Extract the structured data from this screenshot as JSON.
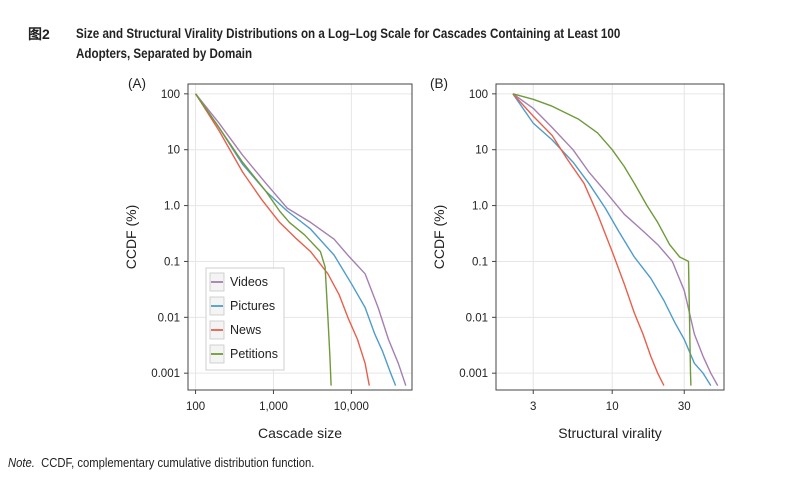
{
  "figure": {
    "label": "图2",
    "title": "Size and Structural Virality Distributions on a Log–Log Scale for Cascades Containing at Least 100 Adopters, Separated by Domain",
    "note_prefix": "Note.",
    "note_text": "CCDF, complementary cumulative distribution function."
  },
  "colors": {
    "Videos": "#a57fb0",
    "Pictures": "#4f9ccb",
    "News": "#e8604c",
    "Petitions": "#6f9a3a"
  },
  "chart_data": [
    {
      "type": "line",
      "panel_label": "(A)",
      "xlabel": "Cascade size",
      "ylabel": "CCDF (%)",
      "x_scale": "log",
      "y_scale": "log",
      "xlim": [
        80,
        60000
      ],
      "ylim": [
        0.0005,
        150
      ],
      "x_ticks": [
        {
          "value": 100,
          "label": "100"
        },
        {
          "value": 1000,
          "label": "1,000"
        },
        {
          "value": 10000,
          "label": "10,000"
        }
      ],
      "y_ticks": [
        {
          "value": 100,
          "label": "100"
        },
        {
          "value": 10,
          "label": "10"
        },
        {
          "value": 1,
          "label": "1.0"
        },
        {
          "value": 0.1,
          "label": "0.1"
        },
        {
          "value": 0.01,
          "label": "0.01"
        },
        {
          "value": 0.001,
          "label": "0.001"
        }
      ],
      "grid": true,
      "legend": {
        "position": "bottom-left",
        "entries": [
          "Videos",
          "Pictures",
          "News",
          "Petitions"
        ]
      },
      "series": [
        {
          "name": "Videos",
          "points": [
            [
              100,
              100
            ],
            [
              200,
              30
            ],
            [
              400,
              8
            ],
            [
              800,
              2.5
            ],
            [
              1500,
              0.9
            ],
            [
              3000,
              0.5
            ],
            [
              6000,
              0.25
            ],
            [
              9000,
              0.13
            ],
            [
              15000,
              0.06
            ],
            [
              22000,
              0.015
            ],
            [
              30000,
              0.004
            ],
            [
              40000,
              0.0015
            ],
            [
              50000,
              0.0006
            ]
          ]
        },
        {
          "name": "Pictures",
          "points": [
            [
              100,
              100
            ],
            [
              200,
              25
            ],
            [
              400,
              5.5
            ],
            [
              800,
              1.8
            ],
            [
              1500,
              0.8
            ],
            [
              3000,
              0.38
            ],
            [
              6000,
              0.13
            ],
            [
              10000,
              0.04
            ],
            [
              15000,
              0.015
            ],
            [
              20000,
              0.005
            ],
            [
              25000,
              0.0025
            ],
            [
              32000,
              0.001
            ],
            [
              37000,
              0.0006
            ]
          ]
        },
        {
          "name": "News",
          "points": [
            [
              100,
              100
            ],
            [
              200,
              22
            ],
            [
              400,
              4
            ],
            [
              700,
              1.3
            ],
            [
              1200,
              0.5
            ],
            [
              2000,
              0.25
            ],
            [
              3000,
              0.15
            ],
            [
              5000,
              0.06
            ],
            [
              7000,
              0.025
            ],
            [
              9000,
              0.01
            ],
            [
              12000,
              0.004
            ],
            [
              15000,
              0.0015
            ],
            [
              17000,
              0.0006
            ]
          ]
        },
        {
          "name": "Petitions",
          "points": [
            [
              100,
              100
            ],
            [
              200,
              25
            ],
            [
              400,
              6
            ],
            [
              800,
              1.8
            ],
            [
              1200,
              0.8
            ],
            [
              1600,
              0.5
            ],
            [
              2500,
              0.3
            ],
            [
              4000,
              0.15
            ],
            [
              4600,
              0.08
            ],
            [
              5000,
              0.01
            ],
            [
              5300,
              0.002
            ],
            [
              5500,
              0.0006
            ]
          ]
        }
      ]
    },
    {
      "type": "line",
      "panel_label": "(B)",
      "xlabel": "Structural virality",
      "ylabel": "CCDF (%)",
      "x_scale": "log",
      "y_scale": "log",
      "xlim": [
        1.7,
        55
      ],
      "ylim": [
        0.0005,
        150
      ],
      "x_ticks": [
        {
          "value": 3,
          "label": "3"
        },
        {
          "value": 10,
          "label": "10"
        },
        {
          "value": 30,
          "label": "30"
        }
      ],
      "y_ticks": [
        {
          "value": 100,
          "label": "100"
        },
        {
          "value": 10,
          "label": "10"
        },
        {
          "value": 1,
          "label": "1.0"
        },
        {
          "value": 0.1,
          "label": "0.1"
        },
        {
          "value": 0.01,
          "label": "0.01"
        },
        {
          "value": 0.001,
          "label": "0.001"
        }
      ],
      "grid": true,
      "series": [
        {
          "name": "Videos",
          "points": [
            [
              2.2,
              100
            ],
            [
              3,
              55
            ],
            [
              4,
              25
            ],
            [
              5.5,
              10
            ],
            [
              7,
              4
            ],
            [
              9,
              1.8
            ],
            [
              12,
              0.7
            ],
            [
              16,
              0.35
            ],
            [
              20,
              0.2
            ],
            [
              25,
              0.1
            ],
            [
              30,
              0.03
            ],
            [
              35,
              0.005
            ],
            [
              40,
              0.002
            ],
            [
              45,
              0.001
            ],
            [
              50,
              0.0006
            ]
          ]
        },
        {
          "name": "Pictures",
          "points": [
            [
              2.2,
              100
            ],
            [
              3,
              30
            ],
            [
              4,
              15
            ],
            [
              5.5,
              6
            ],
            [
              7,
              2.5
            ],
            [
              9,
              0.9
            ],
            [
              11,
              0.35
            ],
            [
              14,
              0.12
            ],
            [
              18,
              0.05
            ],
            [
              22,
              0.02
            ],
            [
              26,
              0.008
            ],
            [
              30,
              0.004
            ],
            [
              35,
              0.0015
            ],
            [
              40,
              0.001
            ],
            [
              45,
              0.0006
            ]
          ]
        },
        {
          "name": "News",
          "points": [
            [
              2.2,
              100
            ],
            [
              3,
              40
            ],
            [
              4,
              18
            ],
            [
              5,
              7
            ],
            [
              6.5,
              2.5
            ],
            [
              8,
              0.7
            ],
            [
              10,
              0.15
            ],
            [
              12,
              0.04
            ],
            [
              14,
              0.012
            ],
            [
              16,
              0.005
            ],
            [
              18,
              0.002
            ],
            [
              20,
              0.001
            ],
            [
              22,
              0.0006
            ]
          ]
        },
        {
          "name": "Petitions",
          "points": [
            [
              2.2,
              100
            ],
            [
              3,
              80
            ],
            [
              4,
              60
            ],
            [
              6,
              35
            ],
            [
              8,
              20
            ],
            [
              10,
              10
            ],
            [
              12,
              5
            ],
            [
              14,
              2.5
            ],
            [
              17,
              1
            ],
            [
              20,
              0.5
            ],
            [
              24,
              0.2
            ],
            [
              28,
              0.12
            ],
            [
              32,
              0.1
            ],
            [
              32.5,
              0.01
            ],
            [
              33,
              0.001
            ],
            [
              33.2,
              0.0006
            ]
          ]
        }
      ]
    }
  ]
}
